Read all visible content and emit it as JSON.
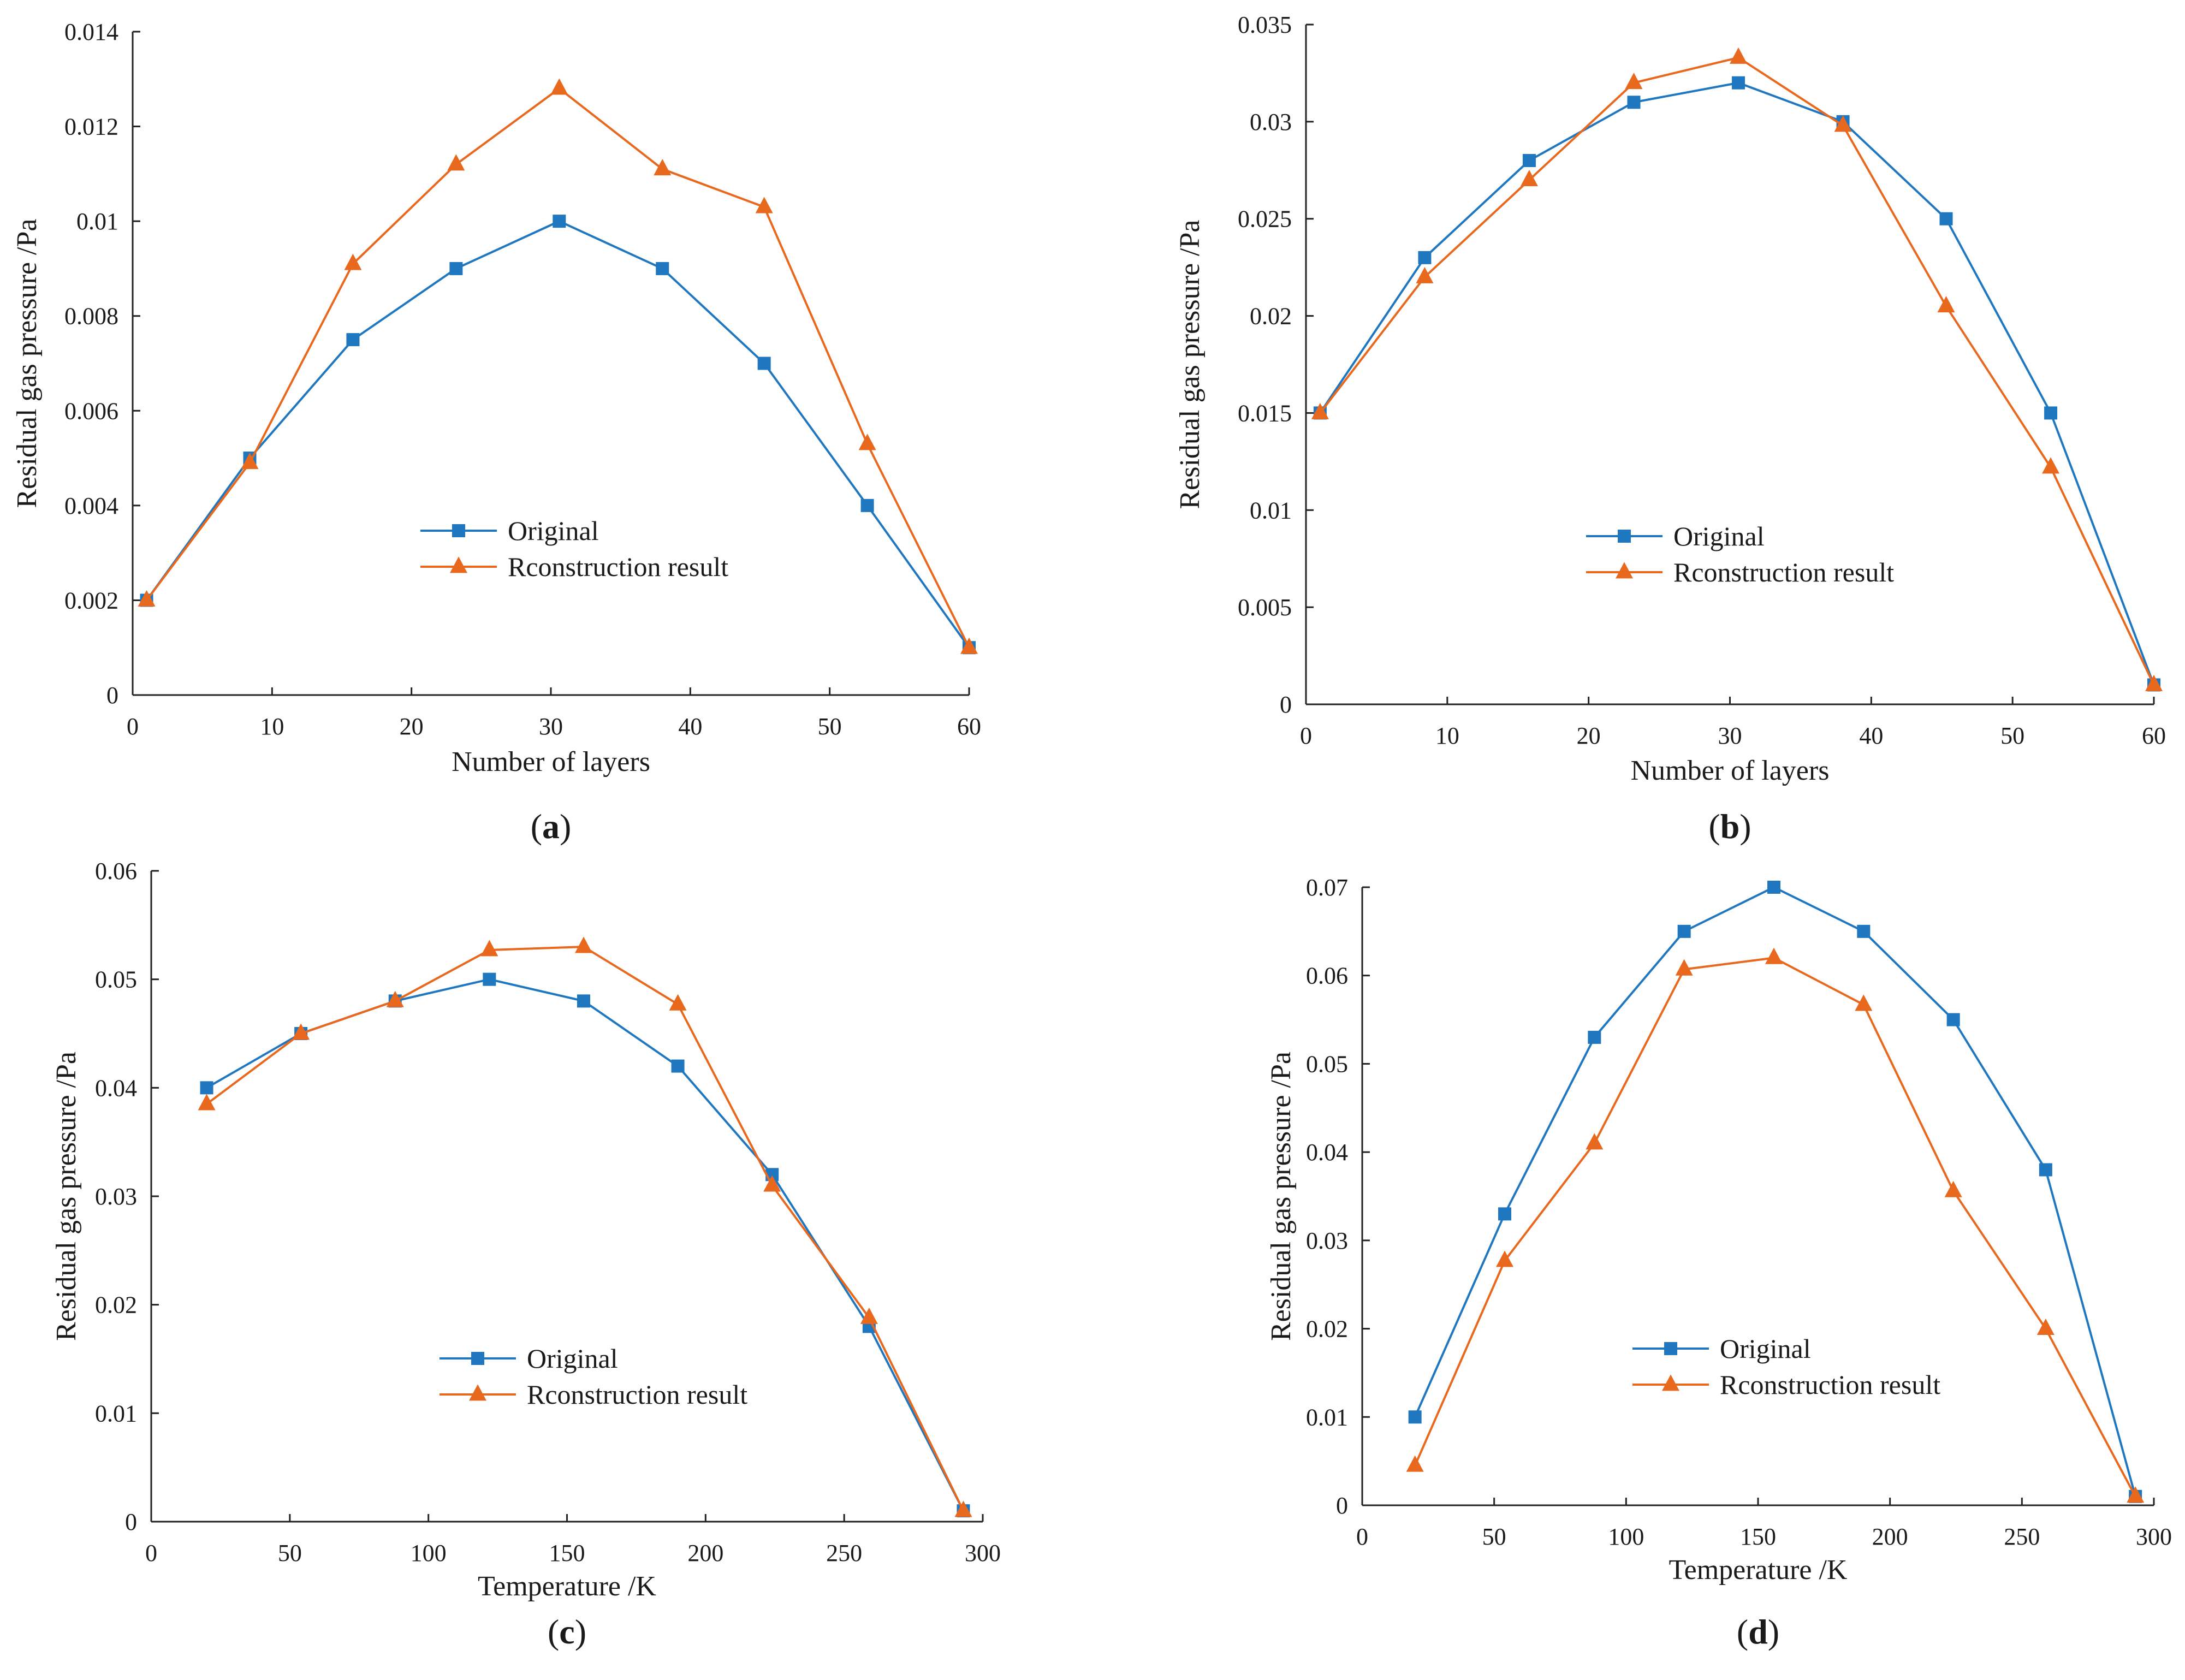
{
  "figure": {
    "colors": {
      "original": "#1f77c0",
      "reconstruction": "#e8681e",
      "axis": "#222222"
    },
    "markers": {
      "original": "square",
      "reconstruction": "triangle"
    }
  },
  "chart_data": [
    {
      "type": "line",
      "panel": "(a)",
      "panel_letter": "a",
      "xlabel": "Number of layers",
      "ylabel": "Residual gas pressure /Pa",
      "xlim": [
        0,
        60
      ],
      "ylim": [
        0,
        0.014
      ],
      "xticks": [
        0,
        10,
        20,
        30,
        40,
        50,
        60
      ],
      "yticks": [
        0,
        0.002,
        0.004,
        0.006,
        0.008,
        0.01,
        0.012,
        0.014
      ],
      "ytick_labels": [
        "0",
        "0.002",
        "0.004",
        "0.006",
        "0.008",
        "0.01",
        "0.012",
        "0.014"
      ],
      "legend_position": "center-right",
      "x": [
        1,
        8.4,
        15.8,
        23.2,
        30.6,
        38,
        45.3,
        52.7,
        60
      ],
      "series": [
        {
          "name": "Original",
          "values": [
            0.002,
            0.005,
            0.0075,
            0.009,
            0.01,
            0.009,
            0.007,
            0.004,
            0.001
          ]
        },
        {
          "name": "Rconstruction result",
          "values": [
            0.002,
            0.0049,
            0.0091,
            0.0112,
            0.0128,
            0.0111,
            0.0103,
            0.0053,
            0.001
          ]
        }
      ]
    },
    {
      "type": "line",
      "panel": "(b)",
      "panel_letter": "b",
      "xlabel": "Number of layers",
      "ylabel": "Residual gas pressure /Pa",
      "xlim": [
        0,
        60
      ],
      "ylim": [
        0,
        0.035
      ],
      "xticks": [
        0,
        10,
        20,
        30,
        40,
        50,
        60
      ],
      "yticks": [
        0,
        0.005,
        0.01,
        0.015,
        0.02,
        0.025,
        0.03,
        0.035
      ],
      "ytick_labels": [
        "0",
        "0.005",
        "0.01",
        "0.015",
        "0.02",
        "0.025",
        "0.03",
        "0.035"
      ],
      "legend_position": "center-right",
      "x": [
        1,
        8.4,
        15.8,
        23.2,
        30.6,
        38,
        45.3,
        52.7,
        60
      ],
      "series": [
        {
          "name": "Original",
          "values": [
            0.015,
            0.023,
            0.028,
            0.031,
            0.032,
            0.03,
            0.025,
            0.015,
            0.001
          ]
        },
        {
          "name": "Rconstruction result",
          "values": [
            0.015,
            0.022,
            0.027,
            0.032,
            0.0333,
            0.0298,
            0.0205,
            0.0122,
            0.001
          ]
        }
      ]
    },
    {
      "type": "line",
      "panel": "(c)",
      "panel_letter": "c",
      "xlabel": "Temperature /K",
      "ylabel": "Residual gas pressure /Pa",
      "xlim": [
        0,
        300
      ],
      "ylim": [
        0,
        0.06
      ],
      "xticks": [
        0,
        50,
        100,
        150,
        200,
        250,
        300
      ],
      "yticks": [
        0,
        0.01,
        0.02,
        0.03,
        0.04,
        0.05,
        0.06
      ],
      "ytick_labels": [
        "0",
        "0.01",
        "0.02",
        "0.03",
        "0.04",
        "0.05",
        "0.06"
      ],
      "legend_position": "center-right",
      "x": [
        20,
        54,
        88,
        122,
        156,
        190,
        224,
        259,
        293
      ],
      "series": [
        {
          "name": "Original",
          "values": [
            0.04,
            0.045,
            0.048,
            0.05,
            0.048,
            0.042,
            0.032,
            0.018,
            0.001
          ]
        },
        {
          "name": "Rconstruction result",
          "values": [
            0.0385,
            0.045,
            0.048,
            0.0527,
            0.053,
            0.0477,
            0.031,
            0.0188,
            0.001
          ]
        }
      ]
    },
    {
      "type": "line",
      "panel": "(d)",
      "panel_letter": "d",
      "xlabel": "Temperature /K",
      "ylabel": "Residual gas pressure /Pa",
      "xlim": [
        0,
        300
      ],
      "ylim": [
        0,
        0.07
      ],
      "xticks": [
        0,
        50,
        100,
        150,
        200,
        250,
        300
      ],
      "yticks": [
        0,
        0.01,
        0.02,
        0.03,
        0.04,
        0.05,
        0.06,
        0.07
      ],
      "ytick_labels": [
        "0",
        "0.01",
        "0.02",
        "0.03",
        "0.04",
        "0.05",
        "0.06",
        "0.07"
      ],
      "legend_position": "center-right",
      "x": [
        20,
        54,
        88,
        122,
        156,
        190,
        224,
        259,
        293
      ],
      "series": [
        {
          "name": "Original",
          "values": [
            0.01,
            0.033,
            0.053,
            0.065,
            0.07,
            0.065,
            0.055,
            0.038,
            0.001
          ]
        },
        {
          "name": "Rconstruction result",
          "values": [
            0.0045,
            0.0277,
            0.041,
            0.0607,
            0.062,
            0.0567,
            0.0356,
            0.02,
            0.001
          ]
        }
      ]
    }
  ]
}
